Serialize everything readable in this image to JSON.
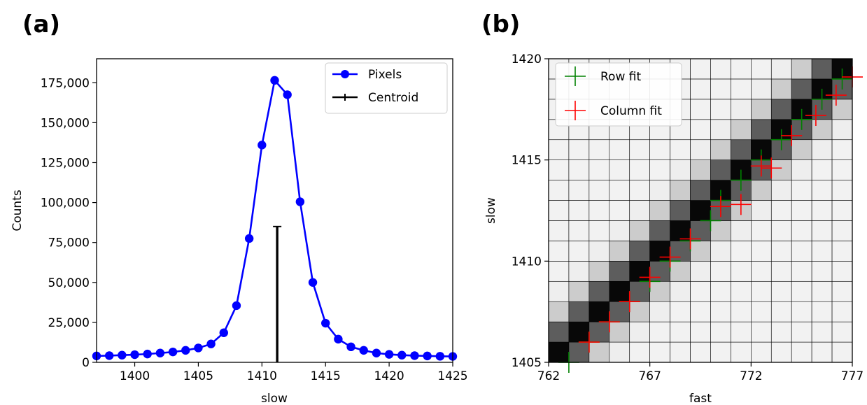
{
  "chart_data": [
    {
      "panel_label": "(a)",
      "type": "line",
      "xlabel": "slow",
      "ylabel": "Counts",
      "xlim": [
        1397,
        1425
      ],
      "ylim": [
        0,
        190000
      ],
      "xticks": [
        "1400",
        "1405",
        "1410",
        "1415",
        "1420",
        "1425"
      ],
      "yticks": [
        "0",
        "25,000",
        "50,000",
        "75,000",
        "100,000",
        "125,000",
        "150,000",
        "175,000"
      ],
      "legend_position": "top-right",
      "series": [
        {
          "name": "Pixels",
          "color": "#0000ff",
          "marker": "circle",
          "x": [
            1397,
            1398,
            1399,
            1400,
            1401,
            1402,
            1403,
            1404,
            1405,
            1406,
            1407,
            1408,
            1409,
            1410,
            1411,
            1412,
            1413,
            1414,
            1415,
            1416,
            1417,
            1418,
            1419,
            1420,
            1421,
            1422,
            1423,
            1424,
            1425
          ],
          "y": [
            4000,
            4200,
            4500,
            4800,
            5200,
            5800,
            6500,
            7500,
            9000,
            11500,
            18500,
            35500,
            77500,
            136000,
            176500,
            167500,
            100500,
            50000,
            24500,
            14500,
            9700,
            7500,
            5800,
            5000,
            4500,
            4200,
            4000,
            3800,
            3700
          ]
        },
        {
          "name": "Centroid",
          "color": "#000000",
          "type": "stem",
          "x": [
            1411.2
          ],
          "y": [
            85000
          ]
        }
      ]
    },
    {
      "panel_label": "(b)",
      "type": "heatmap",
      "xlabel": "fast",
      "ylabel": "slow",
      "xlim": [
        762,
        777
      ],
      "ylim": [
        1405,
        1420
      ],
      "xticks": [
        "762",
        "767",
        "772",
        "777"
      ],
      "yticks": [
        "1405",
        "1410",
        "1415",
        "1420"
      ],
      "colormap": "gray_r",
      "legend_position": "top-left",
      "series": [
        {
          "name": "Row fit",
          "color": "#008000",
          "marker": "plus",
          "x": [
            763.0,
            764.0,
            765.0,
            766.0,
            767.0,
            768.0,
            769.0,
            770.0,
            770.5,
            771.5,
            772.5,
            773.5,
            774.5,
            775.5,
            776.5
          ],
          "y": [
            1405.0,
            1406.0,
            1407.0,
            1408.0,
            1409.0,
            1410.0,
            1411.0,
            1412.0,
            1413.0,
            1414.0,
            1415.0,
            1416.0,
            1417.0,
            1418.0,
            1419.0
          ]
        },
        {
          "name": "Column fit",
          "color": "#ff0000",
          "marker": "plus",
          "x": [
            764.0,
            765.0,
            766.0,
            767.0,
            768.0,
            769.0,
            770.5,
            771.5,
            772.5,
            773.0,
            774.0,
            775.2,
            776.2,
            777.0
          ],
          "y": [
            1406.0,
            1407.0,
            1408.0,
            1409.2,
            1410.2,
            1411.1,
            1412.7,
            1412.8,
            1414.7,
            1414.6,
            1416.2,
            1417.2,
            1418.2,
            1419.1
          ]
        }
      ]
    }
  ]
}
